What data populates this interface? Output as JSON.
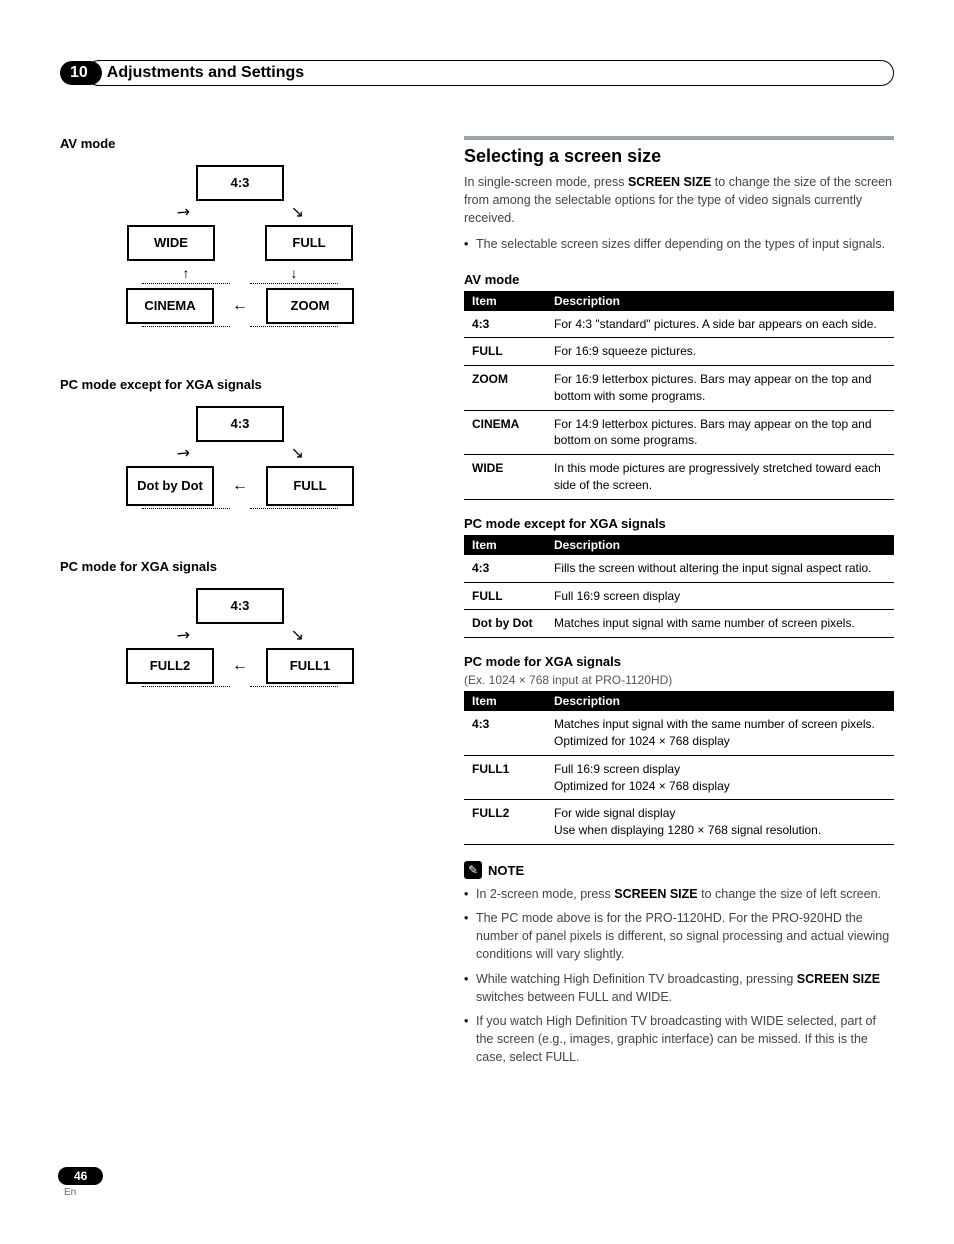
{
  "chapter": {
    "number": "10",
    "title": "Adjustments and Settings"
  },
  "left": {
    "av_mode_label": "AV mode",
    "diagram_av": {
      "top": "4:3",
      "mid_left": "WIDE",
      "mid_right": "FULL",
      "bot_left": "CINEMA",
      "bot_right": "ZOOM"
    },
    "pc_nonxga_label": "PC mode except for XGA signals",
    "diagram_pc_nonxga": {
      "top": "4:3",
      "bot_left": "Dot by Dot",
      "bot_right": "FULL"
    },
    "pc_xga_label": "PC mode for XGA signals",
    "diagram_pc_xga": {
      "top": "4:3",
      "bot_left": "FULL2",
      "bot_right": "FULL1"
    }
  },
  "right": {
    "section_title": "Selecting a screen size",
    "intro_pre": "In single-screen mode, press ",
    "intro_bold": "SCREEN SIZE",
    "intro_post": " to change the size of the screen from among the selectable options for the type of video signals currently received.",
    "intro_bullet": "The selectable screen sizes differ depending on the types of input signals.",
    "table_head_item": "Item",
    "table_head_desc": "Description",
    "av_label": "AV mode",
    "av_rows": [
      {
        "item": "4:3",
        "desc": "For 4:3 \"standard\" pictures. A side bar appears on each side."
      },
      {
        "item": "FULL",
        "desc": "For 16:9 squeeze pictures."
      },
      {
        "item": "ZOOM",
        "desc": "For 16:9 letterbox pictures. Bars may appear on the top and bottom with some programs."
      },
      {
        "item": "CINEMA",
        "desc": "For 14:9 letterbox pictures. Bars may appear on the top and bottom on some programs."
      },
      {
        "item": "WIDE",
        "desc": "In this mode pictures are progressively stretched toward each side of the screen."
      }
    ],
    "pc_nonxga_label": "PC mode except for XGA signals",
    "pc_nonxga_rows": [
      {
        "item": "4:3",
        "desc": "Fills the screen without altering the input signal aspect ratio."
      },
      {
        "item": "FULL",
        "desc": "Full 16:9 screen display"
      },
      {
        "item": "Dot by Dot",
        "desc": "Matches input signal with same number of screen pixels."
      }
    ],
    "pc_xga_label": "PC mode for XGA signals",
    "pc_xga_sub": "(Ex. 1024 × 768 input at PRO-1120HD)",
    "pc_xga_rows": [
      {
        "item": "4:3",
        "desc": "Matches input signal with the same number of screen pixels.\nOptimized for 1024 × 768 display"
      },
      {
        "item": "FULL1",
        "desc": "Full 16:9 screen display\nOptimized for 1024 × 768 display"
      },
      {
        "item": "FULL2",
        "desc": "For wide signal display\nUse when displaying 1280 × 768 signal resolution."
      }
    ],
    "note_label": "NOTE",
    "notes": [
      {
        "pre": "In 2-screen mode, press ",
        "bold": "SCREEN SIZE",
        "post": " to change the size of left screen."
      },
      {
        "pre": "The PC mode above is for the PRO-1120HD. For the PRO-920HD the number of panel pixels is different, so signal processing and actual viewing conditions will vary slightly.",
        "bold": "",
        "post": ""
      },
      {
        "pre": "While watching High Definition TV broadcasting, pressing ",
        "bold": "SCREEN SIZE",
        "post": " switches between FULL and WIDE."
      },
      {
        "pre": "If you watch High Definition TV broadcasting with WIDE selected, part of the screen (e.g., images, graphic interface) can be missed. If this is the case, select FULL.",
        "bold": "",
        "post": ""
      }
    ]
  },
  "footer": {
    "page": "46",
    "lang": "En"
  },
  "glyphs": {
    "arrow_dl": "↙",
    "arrow_dr": "↘",
    "arrow_up": "↑",
    "arrow_dn": "↓",
    "arrow_l": "←",
    "note_icon": "✎"
  }
}
